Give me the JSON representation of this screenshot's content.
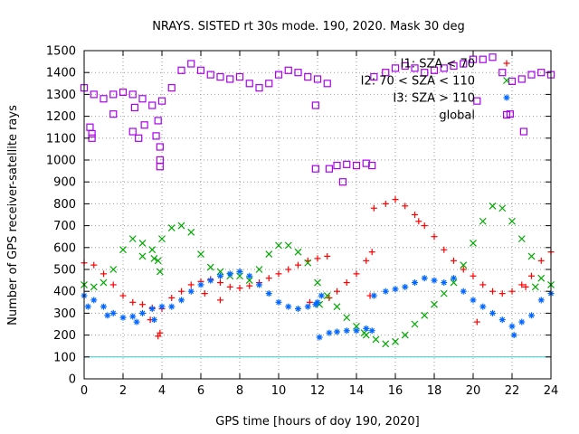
{
  "chart_data": {
    "type": "scatter",
    "title": "NRAYS. SISTED rt 30s mode. 190, 2020. Mask 30 deg",
    "xlabel": "GPS time [hours of doy 190, 2020]",
    "ylabel": "Number of GPS receiver-satellite rays",
    "xlim": [
      0,
      24
    ],
    "ylim": [
      0,
      1500
    ],
    "xticks": [
      "0",
      "2",
      "4",
      "6",
      "8",
      "10",
      "12",
      "14",
      "16",
      "18",
      "20",
      "22",
      "24"
    ],
    "yticks": [
      "0",
      "100",
      "200",
      "300",
      "400",
      "500",
      "600",
      "700",
      "800",
      "900",
      "1000",
      "1100",
      "1200",
      "1300",
      "1400",
      "1500"
    ],
    "grid": true,
    "legend_position": "top-right",
    "threshold": {
      "value": 100,
      "color": "#33cccc"
    },
    "series": [
      {
        "name": "I1: SZA < 70",
        "marker": "+",
        "color": "#ff0000",
        "points": [
          [
            0,
            530
          ],
          [
            0.5,
            520
          ],
          [
            1,
            480
          ],
          [
            1.5,
            430
          ],
          [
            2,
            380
          ],
          [
            2.5,
            350
          ],
          [
            3,
            340
          ],
          [
            3.5,
            325
          ],
          [
            4,
            320
          ],
          [
            4.5,
            370
          ],
          [
            5,
            400
          ],
          [
            5.5,
            430
          ],
          [
            6,
            445
          ],
          [
            6.5,
            455
          ],
          [
            7,
            440
          ],
          [
            7.5,
            420
          ],
          [
            8,
            415
          ],
          [
            8.5,
            425
          ],
          [
            9,
            440
          ],
          [
            9.5,
            460
          ],
          [
            10,
            480
          ],
          [
            10.5,
            500
          ],
          [
            11,
            520
          ],
          [
            11.5,
            540
          ],
          [
            12,
            550
          ],
          [
            12.5,
            560
          ],
          [
            12.6,
            370
          ],
          [
            13,
            400
          ],
          [
            13.5,
            440
          ],
          [
            14,
            480
          ],
          [
            14.5,
            540
          ],
          [
            14.8,
            580
          ],
          [
            14.9,
            780
          ],
          [
            15.5,
            800
          ],
          [
            16,
            820
          ],
          [
            16.5,
            790
          ],
          [
            17,
            750
          ],
          [
            17.5,
            700
          ],
          [
            18,
            650
          ],
          [
            18.5,
            590
          ],
          [
            19,
            540
          ],
          [
            19.5,
            500
          ],
          [
            20,
            470
          ],
          [
            20.5,
            430
          ],
          [
            21,
            400
          ],
          [
            21.5,
            390
          ],
          [
            22,
            400
          ],
          [
            22.5,
            430
          ],
          [
            23,
            470
          ],
          [
            23.5,
            540
          ],
          [
            24,
            580
          ],
          [
            3.4,
            270
          ],
          [
            3.9,
            210
          ],
          [
            3.8,
            195
          ],
          [
            6.2,
            390
          ],
          [
            7,
            360
          ],
          [
            11.6,
            350
          ],
          [
            14.7,
            380
          ],
          [
            17.2,
            720
          ],
          [
            20.2,
            260
          ],
          [
            22.7,
            420
          ]
        ]
      },
      {
        "name": "I2: 70 < SZA < 110",
        "marker": "x",
        "color": "#00aa00",
        "points": [
          [
            0,
            430
          ],
          [
            0.5,
            420
          ],
          [
            1,
            440
          ],
          [
            1.5,
            500
          ],
          [
            2,
            590
          ],
          [
            2.5,
            640
          ],
          [
            3,
            620
          ],
          [
            3.5,
            590
          ],
          [
            4,
            640
          ],
          [
            4.5,
            690
          ],
          [
            5,
            700
          ],
          [
            5.5,
            670
          ],
          [
            6,
            570
          ],
          [
            6.5,
            510
          ],
          [
            7,
            490
          ],
          [
            7.5,
            470
          ],
          [
            8,
            470
          ],
          [
            8.5,
            450
          ],
          [
            9,
            500
          ],
          [
            9.5,
            570
          ],
          [
            10,
            610
          ],
          [
            10.5,
            610
          ],
          [
            11,
            580
          ],
          [
            11.5,
            530
          ],
          [
            12,
            440
          ],
          [
            12.5,
            380
          ],
          [
            13,
            330
          ],
          [
            13.5,
            280
          ],
          [
            14,
            240
          ],
          [
            14.5,
            200
          ],
          [
            15,
            180
          ],
          [
            15.5,
            160
          ],
          [
            16,
            170
          ],
          [
            16.5,
            200
          ],
          [
            17,
            250
          ],
          [
            17.5,
            290
          ],
          [
            18,
            340
          ],
          [
            18.5,
            390
          ],
          [
            19,
            440
          ],
          [
            19.5,
            520
          ],
          [
            20,
            620
          ],
          [
            20.5,
            720
          ],
          [
            21,
            790
          ],
          [
            21.5,
            780
          ],
          [
            22,
            720
          ],
          [
            22.5,
            640
          ],
          [
            23,
            560
          ],
          [
            23.5,
            460
          ],
          [
            24,
            430
          ],
          [
            3,
            560
          ],
          [
            3.6,
            550
          ],
          [
            3.9,
            490
          ],
          [
            3.8,
            540
          ],
          [
            12.1,
            340
          ],
          [
            14.4,
            210
          ],
          [
            23.2,
            420
          ]
        ]
      },
      {
        "name": "I3: SZA > 110",
        "marker": "*",
        "color": "#0066ff",
        "points": [
          [
            0,
            380
          ],
          [
            0.5,
            360
          ],
          [
            1,
            330
          ],
          [
            1.5,
            300
          ],
          [
            2,
            280
          ],
          [
            2.5,
            285
          ],
          [
            3,
            300
          ],
          [
            3.5,
            320
          ],
          [
            4,
            330
          ],
          [
            4.5,
            330
          ],
          [
            5,
            360
          ],
          [
            5.5,
            400
          ],
          [
            6,
            430
          ],
          [
            6.5,
            450
          ],
          [
            7,
            470
          ],
          [
            7.5,
            480
          ],
          [
            8,
            490
          ],
          [
            8.5,
            470
          ],
          [
            9,
            430
          ],
          [
            9.5,
            390
          ],
          [
            10,
            350
          ],
          [
            10.5,
            330
          ],
          [
            11,
            320
          ],
          [
            11.5,
            330
          ],
          [
            12,
            350
          ],
          [
            12.2,
            380
          ],
          [
            12.6,
            210
          ],
          [
            13,
            215
          ],
          [
            13.5,
            220
          ],
          [
            14,
            220
          ],
          [
            14.5,
            230
          ],
          [
            14.8,
            220
          ],
          [
            14.9,
            380
          ],
          [
            15.5,
            400
          ],
          [
            16,
            410
          ],
          [
            16.5,
            420
          ],
          [
            17,
            440
          ],
          [
            17.5,
            460
          ],
          [
            18,
            450
          ],
          [
            18.5,
            440
          ],
          [
            19,
            460
          ],
          [
            19.5,
            400
          ],
          [
            20,
            360
          ],
          [
            20.5,
            330
          ],
          [
            21,
            300
          ],
          [
            21.5,
            270
          ],
          [
            22,
            240
          ],
          [
            22.5,
            260
          ],
          [
            23,
            290
          ],
          [
            23.5,
            360
          ],
          [
            24,
            390
          ],
          [
            0.2,
            330
          ],
          [
            1.2,
            290
          ],
          [
            2.7,
            260
          ],
          [
            3.6,
            270
          ],
          [
            11.9,
            340
          ],
          [
            12.1,
            190
          ],
          [
            22.1,
            200
          ]
        ]
      },
      {
        "name": "global",
        "marker": "square",
        "color": "#aa00ee",
        "points": [
          [
            0,
            1330
          ],
          [
            0.5,
            1300
          ],
          [
            1,
            1280
          ],
          [
            1.5,
            1300
          ],
          [
            2,
            1310
          ],
          [
            2.5,
            1300
          ],
          [
            3,
            1280
          ],
          [
            3.5,
            1250
          ],
          [
            4,
            1270
          ],
          [
            4.5,
            1330
          ],
          [
            5,
            1410
          ],
          [
            5.5,
            1440
          ],
          [
            6,
            1410
          ],
          [
            6.5,
            1390
          ],
          [
            7,
            1380
          ],
          [
            7.5,
            1370
          ],
          [
            8,
            1380
          ],
          [
            8.5,
            1350
          ],
          [
            9,
            1330
          ],
          [
            9.5,
            1350
          ],
          [
            10,
            1390
          ],
          [
            10.5,
            1410
          ],
          [
            11,
            1400
          ],
          [
            11.5,
            1380
          ],
          [
            12,
            1370
          ],
          [
            12.5,
            1350
          ],
          [
            12.6,
            960
          ],
          [
            13,
            975
          ],
          [
            13.5,
            980
          ],
          [
            14,
            975
          ],
          [
            14.5,
            985
          ],
          [
            14.8,
            975
          ],
          [
            14.9,
            1380
          ],
          [
            15.5,
            1400
          ],
          [
            16,
            1420
          ],
          [
            16.5,
            1430
          ],
          [
            17,
            1420
          ],
          [
            17.5,
            1400
          ],
          [
            18,
            1410
          ],
          [
            18.5,
            1420
          ],
          [
            19,
            1430
          ],
          [
            19.5,
            1440
          ],
          [
            20,
            1460
          ],
          [
            20.5,
            1460
          ],
          [
            21,
            1470
          ],
          [
            21.5,
            1400
          ],
          [
            22,
            1360
          ],
          [
            22.5,
            1370
          ],
          [
            23,
            1390
          ],
          [
            23.5,
            1400
          ],
          [
            24,
            1390
          ],
          [
            0.3,
            1150
          ],
          [
            0.4,
            1120
          ],
          [
            0.4,
            1100
          ],
          [
            1.5,
            1210
          ],
          [
            2.6,
            1240
          ],
          [
            2.5,
            1130
          ],
          [
            2.8,
            1100
          ],
          [
            3.1,
            1160
          ],
          [
            3.7,
            1110
          ],
          [
            3.9,
            1060
          ],
          [
            3.9,
            1000
          ],
          [
            3.9,
            970
          ],
          [
            3.8,
            1180
          ],
          [
            11.9,
            1250
          ],
          [
            11.9,
            960
          ],
          [
            13.3,
            900
          ],
          [
            20.2,
            1270
          ],
          [
            21.9,
            1210
          ],
          [
            22.6,
            1130
          ]
        ]
      }
    ]
  }
}
